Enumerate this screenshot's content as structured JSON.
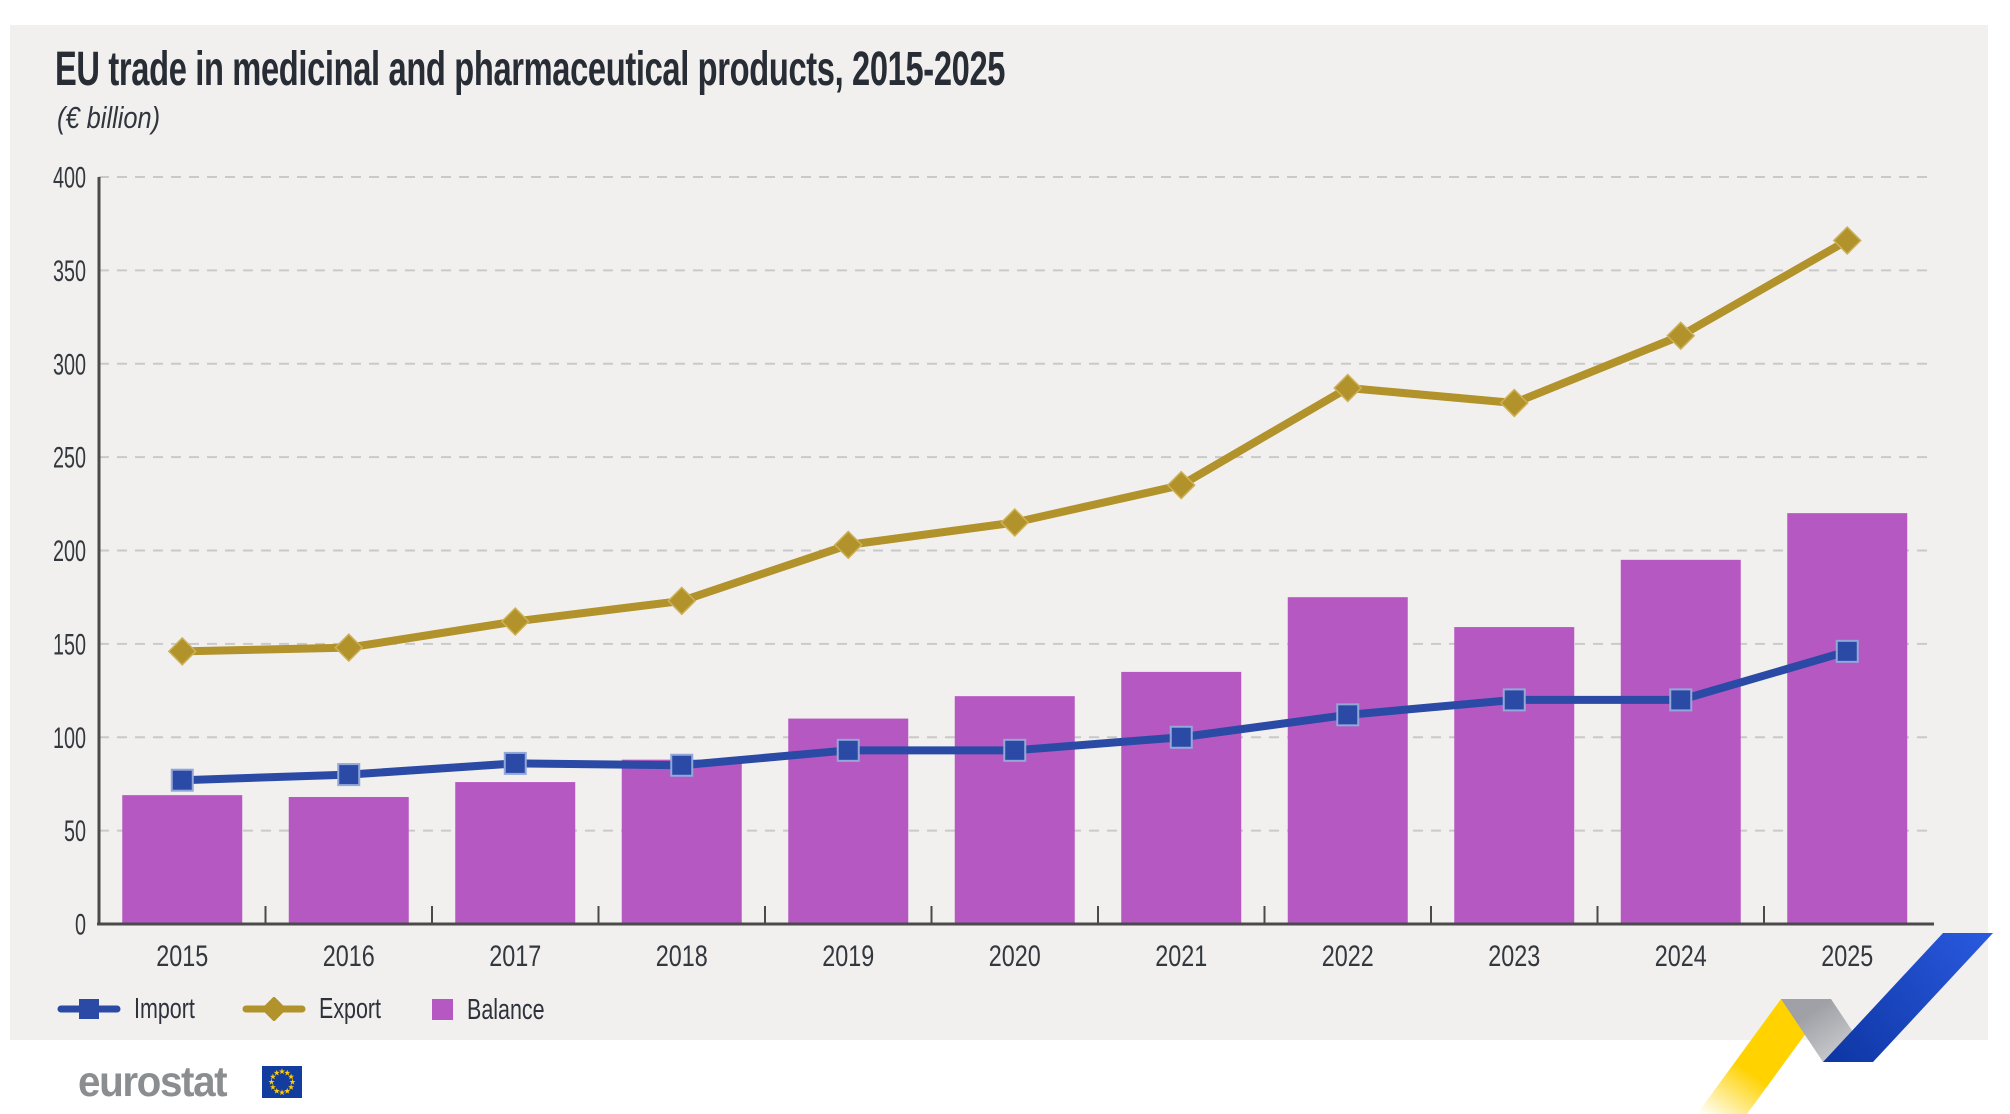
{
  "title": "EU trade in medicinal and pharmaceutical products, 2015-2025",
  "subtitle": "(€ billion)",
  "legend": {
    "items": [
      {
        "id": "import",
        "label": "Import",
        "marker": "line-square",
        "color": "#2b4aa5"
      },
      {
        "id": "export",
        "label": "Export",
        "marker": "line-diamond",
        "color": "#b2922b"
      },
      {
        "id": "balance",
        "label": "Balance",
        "marker": "square",
        "color": "#b658c2"
      }
    ]
  },
  "footer": {
    "logo_text": "eurostat",
    "flag_icon": "eu-flag"
  },
  "colors": {
    "canvas_bg": "#f1f0ee",
    "title_text": "#272c35",
    "axis": "#4a4a4a",
    "gridline": "#c9c9c9",
    "flag_blue": "#123c9d",
    "flag_stars": "#ffcc00",
    "ribbon_yellow": "#ffd200",
    "ribbon_blue": "#2a5ae0"
  },
  "chart_data": {
    "type": "combo-bar-line",
    "categories": [
      "2015",
      "2016",
      "2017",
      "2018",
      "2019",
      "2020",
      "2021",
      "2022",
      "2023",
      "2024",
      "2025"
    ],
    "series": [
      {
        "name": "Balance",
        "type": "bar",
        "color": "#b658c2",
        "values": [
          69,
          68,
          76,
          88,
          110,
          122,
          135,
          175,
          159,
          195,
          220
        ]
      },
      {
        "name": "Import",
        "type": "line",
        "marker": "square",
        "color": "#2b4aa5",
        "marker_stroke": "#93a7d9",
        "values": [
          77,
          80,
          86,
          85,
          93,
          93,
          100,
          112,
          120,
          120,
          146
        ]
      },
      {
        "name": "Export",
        "type": "line",
        "marker": "diamond",
        "color": "#b2922b",
        "marker_stroke": "#cdb156",
        "values": [
          146,
          148,
          162,
          173,
          203,
          215,
          235,
          287,
          279,
          315,
          366
        ]
      }
    ],
    "ylabel": "(€ billion)",
    "ylim": [
      0,
      400
    ],
    "yticks": [
      0,
      50,
      100,
      150,
      200,
      250,
      300,
      350,
      400
    ],
    "grid": "horizontal-dashed",
    "legend_position": "bottom-left"
  }
}
